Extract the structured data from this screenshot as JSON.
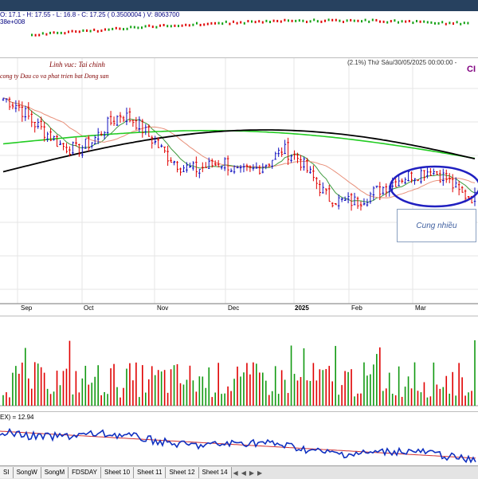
{
  "header": {
    "ohlc": "O: 17.1 - H: 17.55 - L: 16.8 - C: 17.25 ( 0.3500004 ) V: 8063700",
    "volume_scale": "38e+008"
  },
  "main_chart": {
    "caption_sector": "Linh vuc: Tai chinh",
    "caption_company": "cong ty Dau co va phat trien bat Dong san",
    "change_and_date": "(2.1%) Thứ Sáu/30/05/2025 00:00:00 -",
    "symbol": "CI",
    "annotation": "Cung nhiều",
    "month_labels": [
      "Sep",
      "Oct",
      "Nov",
      "Dec",
      "2025",
      "Feb",
      "Mar"
    ]
  },
  "indicator": {
    "label": "EX) = 12.94"
  },
  "tabs": [
    "SI",
    "SongW",
    "SongM",
    "FDSDAY",
    "Sheet 10",
    "Sheet 11",
    "Sheet 12",
    "Sheet 14"
  ],
  "nav_buttons": [
    "◀",
    "◀",
    "▶",
    "▶"
  ],
  "colors": {
    "up": "#1010c0",
    "down": "#e00000",
    "volume_up": "#119911",
    "volume_down": "#e00000",
    "ma_fast": "#3e9a3e",
    "ma_mid": "#e8907a",
    "ma_slow": "#22cc22",
    "ma_long": "#000000",
    "accent_header": "#27415f",
    "ellipse": "#2020c0"
  },
  "chart_data": [
    {
      "type": "candlestick",
      "title": "",
      "categories": [
        "Sep",
        "Oct",
        "Nov",
        "Dec",
        "2025",
        "Feb",
        "Mar"
      ],
      "close_trend": [
        18.2,
        18.0,
        17.6,
        17.3,
        17.0,
        16.9,
        17.1,
        17.5,
        17.8,
        17.6,
        17.2,
        16.8,
        16.5,
        16.4,
        16.5,
        16.6,
        16.3,
        16.4,
        16.6,
        16.9,
        16.7,
        16.2,
        15.7,
        15.6,
        15.6,
        15.8,
        16.0,
        16.2,
        16.3,
        16.4,
        16.2,
        15.8,
        15.7
      ]
    },
    {
      "type": "bar",
      "title": "",
      "categories": [
        "Sep",
        "Oct",
        "Nov",
        "Dec",
        "2025",
        "Feb",
        "Mar"
      ]
    }
  ]
}
